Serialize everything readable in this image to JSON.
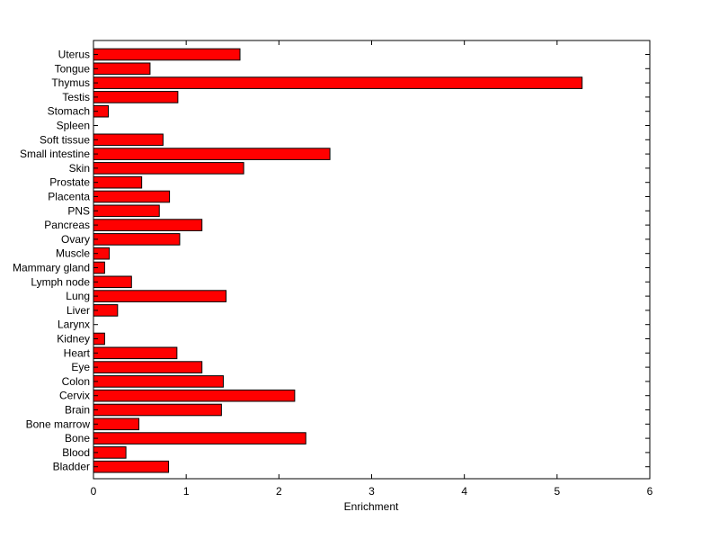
{
  "chart_data": {
    "type": "bar",
    "orientation": "horizontal",
    "title": "",
    "xlabel": "Enrichment",
    "ylabel": "",
    "xlim": [
      0,
      6
    ],
    "xticks": [
      0,
      1,
      2,
      3,
      4,
      5,
      6
    ],
    "grid": false,
    "bar_color": "#ff0000",
    "categories": [
      "Uterus",
      "Tongue",
      "Thymus",
      "Testis",
      "Stomach",
      "Spleen",
      "Soft tissue",
      "Small intestine",
      "Skin",
      "Prostate",
      "Placenta",
      "PNS",
      "Pancreas",
      "Ovary",
      "Muscle",
      "Mammary gland",
      "Lymph node",
      "Lung",
      "Liver",
      "Larynx",
      "Kidney",
      "Heart",
      "Eye",
      "Colon",
      "Cervix",
      "Brain",
      "Bone marrow",
      "Bone",
      "Blood",
      "Bladder"
    ],
    "values": [
      1.58,
      0.61,
      5.27,
      0.91,
      0.16,
      0,
      0.75,
      2.55,
      1.62,
      0.52,
      0.82,
      0.71,
      1.17,
      0.93,
      0.17,
      0.12,
      0.41,
      1.43,
      0.26,
      0,
      0.12,
      0.9,
      1.17,
      1.4,
      2.17,
      1.38,
      0.49,
      2.29,
      0.35,
      0.81
    ]
  }
}
